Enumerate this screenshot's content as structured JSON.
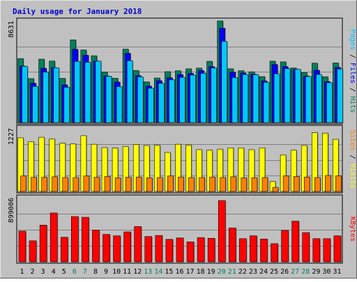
{
  "chart_data": {
    "type": "bar",
    "title": "Daily usage for January 2018",
    "categories": [
      "1",
      "2",
      "3",
      "4",
      "5",
      "6",
      "7",
      "8",
      "9",
      "10",
      "11",
      "12",
      "13",
      "14",
      "15",
      "16",
      "17",
      "18",
      "19",
      "20",
      "21",
      "22",
      "23",
      "24",
      "25",
      "26",
      "27",
      "28",
      "29",
      "30",
      "31"
    ],
    "weekend_days": [
      "6",
      "7",
      "13",
      "14",
      "20",
      "21",
      "27",
      "28"
    ],
    "panels": [
      {
        "id": "hits_files_pages",
        "ylim": [
          0,
          8631
        ],
        "max_label": "8631",
        "series": [
          {
            "name": "Hits",
            "color": "#00805c",
            "values": [
              5430,
              3730,
              5380,
              5220,
              3750,
              7020,
              6160,
              5670,
              4290,
              3760,
              6230,
              4420,
              3450,
              3780,
              4320,
              4400,
              4560,
              4620,
              5200,
              8630,
              4560,
              4400,
              4310,
              3900,
              5210,
              5150,
              4630,
              4240,
              5040,
              3890,
              5060
            ]
          },
          {
            "name": "Files",
            "color": "#0000ff",
            "values": [
              4800,
              3340,
              4610,
              4660,
              3200,
              6220,
              5720,
              5220,
              3950,
              3440,
              5880,
              3990,
              3100,
              3550,
              3800,
              4080,
              4170,
              4410,
              4750,
              8010,
              4270,
              4210,
              4110,
              3540,
              4930,
              4750,
              4510,
              3950,
              4440,
              3480,
              4680
            ]
          },
          {
            "name": "Pages",
            "color": "#00c8ff",
            "values": [
              4780,
              3070,
              4290,
              4650,
              3000,
              5190,
              5110,
              5210,
              3930,
              3050,
              5250,
              3880,
              2920,
              3330,
              3640,
              3840,
              4030,
              4180,
              4630,
              6890,
              3820,
              4080,
              4070,
              3420,
              4140,
              4580,
              4520,
              3910,
              4080,
              3380,
              4550
            ]
          }
        ]
      },
      {
        "id": "visits_sites",
        "ylim": [
          0,
          1227
        ],
        "max_label": "1227",
        "series": [
          {
            "name": "Visits",
            "color": "#ffff00",
            "values": [
              1040,
              965,
              1050,
              1015,
              935,
              920,
              1080,
              915,
              850,
              840,
              870,
              910,
              890,
              895,
              755,
              915,
              900,
              810,
              800,
              820,
              845,
              845,
              810,
              845,
              195,
              710,
              800,
              890,
              1140,
              1130,
              1010
            ]
          },
          {
            "name": "Sites",
            "color": "#ff8000",
            "values": [
              300,
              275,
              275,
              285,
              270,
              270,
              300,
              275,
              290,
              265,
              275,
              280,
              265,
              270,
              300,
              280,
              270,
              270,
              280,
              270,
              285,
              265,
              265,
              270,
              80,
              305,
              290,
              280,
              270,
              310,
              305
            ]
          }
        ]
      },
      {
        "id": "kbytes",
        "ylim": [
          0,
          899006
        ],
        "max_label": "899006",
        "series": [
          {
            "name": "KBytes",
            "color": "#ff0000",
            "values": [
              430000,
              295000,
              515000,
              685000,
              345000,
              635000,
              625000,
              445000,
              385000,
              365000,
              420000,
              495000,
              355000,
              370000,
              315000,
              335000,
              280000,
              340000,
              330000,
              860000,
              475000,
              325000,
              365000,
              320000,
              255000,
              440000,
              570000,
              410000,
              325000,
              325000,
              365000
            ]
          }
        ]
      }
    ],
    "legend": {
      "hits_files_pages": [
        {
          "text": "Pages",
          "color": "#00c8ff"
        },
        {
          "text": " / ",
          "color": "#000000"
        },
        {
          "text": "Files",
          "color": "#0000ff"
        },
        {
          "text": " / ",
          "color": "#000000"
        },
        {
          "text": "Hits",
          "color": "#00805c"
        }
      ],
      "visits_sites": [
        {
          "text": "Sites",
          "color": "#ff8000"
        },
        {
          "text": " / ",
          "color": "#000000"
        },
        {
          "text": "Visits",
          "color": "#ffff00"
        }
      ],
      "kbytes": [
        {
          "text": "KBytes",
          "color": "#ff0000"
        }
      ]
    },
    "grid": true,
    "legend_position": "right"
  },
  "style": {
    "title_color": "#0000cc",
    "weekday_label_color": "#000000",
    "weekend_label_color": "#00805c",
    "plot_background": "#c0c0c0",
    "grid_color": "#808080"
  }
}
